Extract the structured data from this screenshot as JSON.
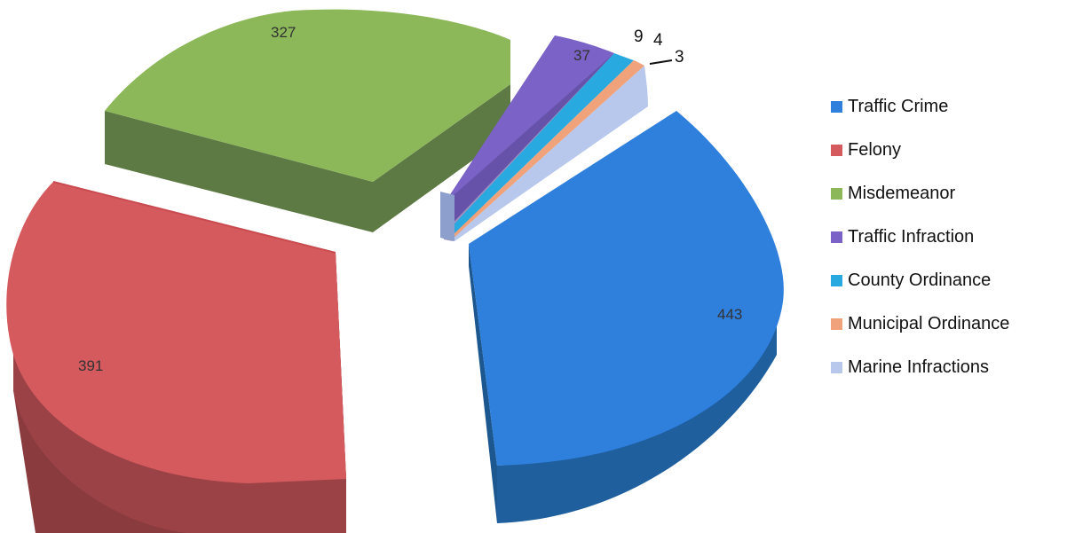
{
  "chart_data": {
    "type": "pie",
    "style": "3d-exploded",
    "title": "",
    "legend_position": "right",
    "slices": [
      {
        "label": "Traffic Crime",
        "value": 443,
        "color": "#2f7fdc"
      },
      {
        "label": "Felony",
        "value": 391,
        "color": "#d45a5e"
      },
      {
        "label": "Misdemeanor",
        "value": 327,
        "color": "#8cb85a"
      },
      {
        "label": "Traffic Infraction",
        "value": 37,
        "color": "#7a62c6"
      },
      {
        "label": "County Ordinance",
        "value": 9,
        "color": "#28a9e0"
      },
      {
        "label": "Municipal Ordinance",
        "value": 4,
        "color": "#f0a27a"
      },
      {
        "label": "Marine Infractions",
        "value": 3,
        "color": "#b7c8ec"
      }
    ]
  }
}
